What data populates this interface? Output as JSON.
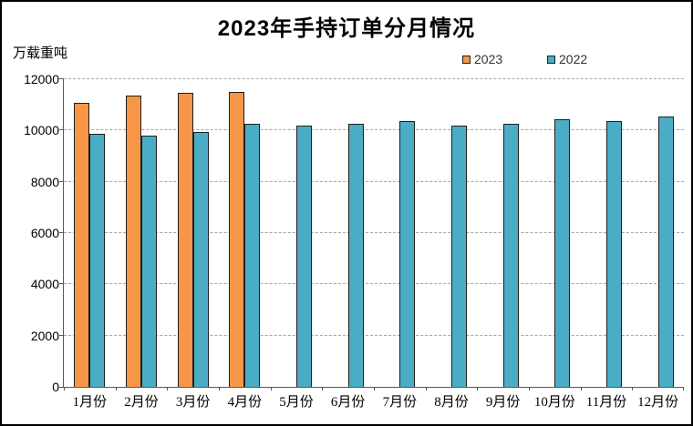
{
  "title": "2023年手持订单分月情况",
  "y_axis_unit": "万载重吨",
  "legend": {
    "items": [
      {
        "label": "2023",
        "color": "#F79646"
      },
      {
        "label": "2022",
        "color": "#4BACC6"
      }
    ]
  },
  "colors": {
    "bar_2023": "#F79646",
    "bar_2022": "#4BACC6",
    "bar_border": "#1f1f1f",
    "gridline": "#a6a6a6",
    "axis": "#595959"
  },
  "chart_data": {
    "type": "bar",
    "title": "2023年手持订单分月情况",
    "xlabel": "",
    "ylabel": "万载重吨",
    "categories": [
      "1月份",
      "2月份",
      "3月份",
      "4月份",
      "5月份",
      "6月份",
      "7月份",
      "8月份",
      "9月份",
      "10月份",
      "11月份",
      "12月份"
    ],
    "series": [
      {
        "name": "2023",
        "color": "#F79646",
        "values": [
          11064,
          11351,
          11452,
          11508,
          null,
          null,
          null,
          null,
          null,
          null,
          null,
          null
        ]
      },
      {
        "name": "2022",
        "color": "#4BACC6",
        "values": [
          9859,
          9798,
          9934,
          10247,
          10190,
          10274,
          10366,
          10206,
          10261,
          10443,
          10355,
          10557
        ]
      }
    ],
    "ylim": [
      0,
      12000
    ],
    "yticks": [
      0,
      2000,
      4000,
      6000,
      8000,
      10000,
      12000
    ],
    "grid": "horizontal-dashed",
    "legend_position": "top-right"
  }
}
